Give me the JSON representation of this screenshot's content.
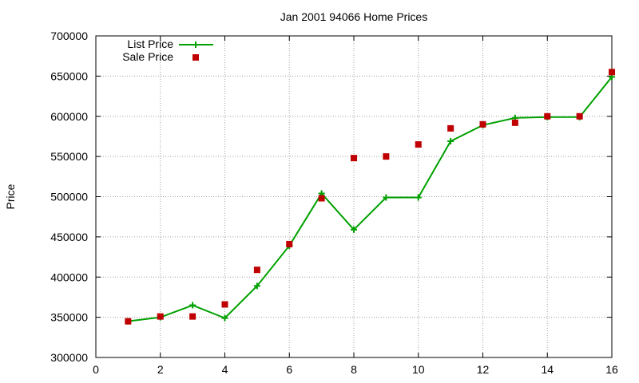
{
  "chart_data": {
    "type": "line",
    "title": "Jan 2001 94066 Home Prices",
    "xlabel": "",
    "ylabel": "Price",
    "xlim": [
      0,
      16
    ],
    "ylim": [
      300000,
      700000
    ],
    "x_ticks": [
      "0",
      "2",
      "4",
      "6",
      "8",
      "10",
      "12",
      "14",
      "16"
    ],
    "y_ticks": [
      "300000",
      "350000",
      "400000",
      "450000",
      "500000",
      "550000",
      "600000",
      "650000",
      "700000"
    ],
    "grid": true,
    "legend_position": "top-left",
    "series": [
      {
        "name": "List Price",
        "style": "line-with-plus-markers",
        "color": "#00a000",
        "x": [
          1,
          2,
          3,
          4,
          5,
          6,
          7,
          8,
          9,
          10,
          11,
          12,
          13,
          14,
          15,
          16
        ],
        "values": [
          345000,
          350000,
          365000,
          349000,
          389000,
          439000,
          504000,
          459000,
          499000,
          499000,
          569000,
          589000,
          598000,
          599000,
          599000,
          649000
        ]
      },
      {
        "name": "Sale Price",
        "style": "square-markers",
        "color": "#c00000",
        "x": [
          1,
          2,
          3,
          4,
          5,
          6,
          7,
          8,
          9,
          10,
          11,
          12,
          13,
          14,
          15,
          16
        ],
        "values": [
          345000,
          351000,
          351000,
          366000,
          409000,
          441000,
          498000,
          548000,
          550000,
          565000,
          585000,
          590000,
          592000,
          600000,
          600000,
          655000
        ]
      }
    ]
  }
}
